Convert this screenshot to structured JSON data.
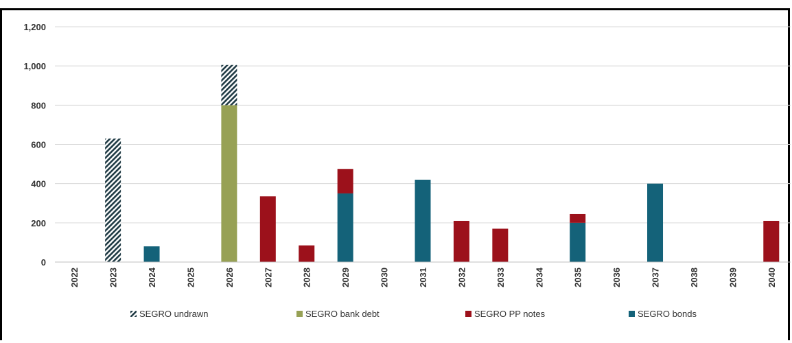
{
  "chart_data": {
    "type": "bar",
    "stacked": true,
    "categories": [
      "2022",
      "2023",
      "2024",
      "2025",
      "2026",
      "2027",
      "2028",
      "2029",
      "2030",
      "2031",
      "2032",
      "2033",
      "2034",
      "2035",
      "2036",
      "2037",
      "2038",
      "2039",
      "2040"
    ],
    "ylim": [
      0,
      1200
    ],
    "yticks": [
      0,
      200,
      400,
      600,
      800,
      1000,
      1200
    ],
    "ytick_labels": [
      "0",
      "200",
      "400",
      "600",
      "800",
      "1,000",
      "1,200"
    ],
    "grid": true,
    "legend_position": "bottom",
    "series": [
      {
        "name": "SEGRO undrawn",
        "color": "#1f3a44",
        "pattern": "hatched",
        "values": [
          0,
          630,
          0,
          0,
          205,
          0,
          0,
          0,
          0,
          0,
          0,
          0,
          0,
          0,
          0,
          0,
          0,
          0,
          0
        ]
      },
      {
        "name": "SEGRO bank debt",
        "color": "#97a155",
        "values": [
          0,
          0,
          0,
          0,
          800,
          0,
          0,
          0,
          0,
          0,
          0,
          0,
          0,
          0,
          0,
          0,
          0,
          0,
          0
        ]
      },
      {
        "name": "SEGRO PP notes",
        "color": "#9c111b",
        "values": [
          0,
          0,
          0,
          0,
          0,
          335,
          85,
          125,
          0,
          0,
          210,
          170,
          0,
          45,
          0,
          0,
          0,
          0,
          210
        ]
      },
      {
        "name": "SEGRO bonds",
        "color": "#146279",
        "values": [
          0,
          0,
          80,
          0,
          0,
          0,
          0,
          350,
          0,
          420,
          0,
          0,
          0,
          200,
          0,
          400,
          0,
          0,
          0
        ]
      }
    ],
    "stack_order": [
      "SEGRO bonds",
      "SEGRO bank debt",
      "SEGRO PP notes",
      "SEGRO undrawn"
    ],
    "legend_order": [
      "SEGRO undrawn",
      "SEGRO bank debt",
      "SEGRO PP notes",
      "SEGRO bonds"
    ]
  }
}
